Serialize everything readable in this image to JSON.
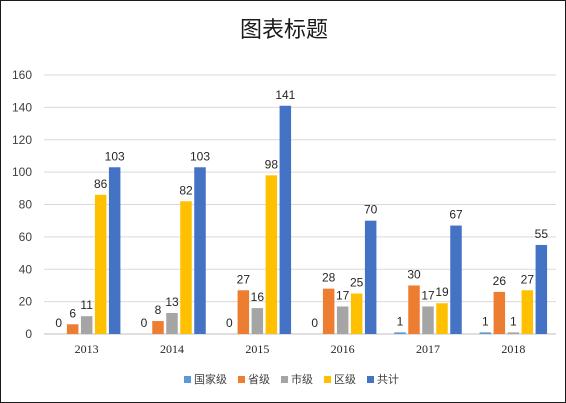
{
  "chart_data": {
    "type": "bar",
    "title": "图表标题",
    "xlabel": "",
    "ylabel": "",
    "categories": [
      "2013",
      "2014",
      "2015",
      "2016",
      "2017",
      "2018"
    ],
    "ylim": [
      0,
      160
    ],
    "yticks": [
      0,
      20,
      40,
      60,
      80,
      100,
      120,
      140,
      160
    ],
    "grid": true,
    "legend_position": "bottom",
    "data_labels": true,
    "series": [
      {
        "name": "国家级",
        "color": "#5B9BD5",
        "values": [
          0,
          0,
          0,
          0,
          1,
          1
        ]
      },
      {
        "name": "省级",
        "color": "#ED7D31",
        "values": [
          6,
          8,
          27,
          28,
          30,
          26
        ]
      },
      {
        "name": "市级",
        "color": "#A5A5A5",
        "values": [
          11,
          13,
          16,
          17,
          17,
          1
        ]
      },
      {
        "name": "区级",
        "color": "#FFC000",
        "values": [
          86,
          82,
          98,
          25,
          19,
          27
        ]
      },
      {
        "name": "共计",
        "color": "#4472C4",
        "values": [
          103,
          103,
          141,
          70,
          67,
          55
        ]
      }
    ]
  }
}
